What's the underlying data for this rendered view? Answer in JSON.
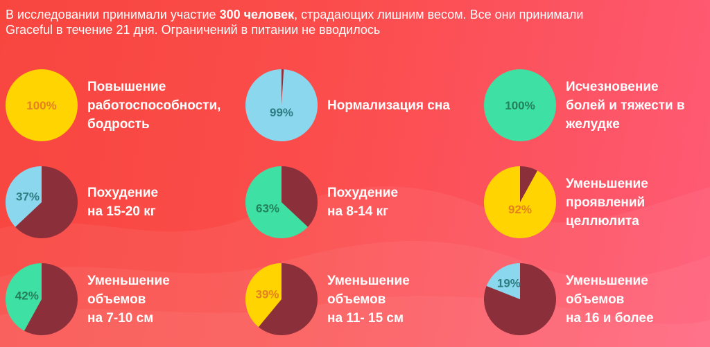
{
  "intro": {
    "part1": "В исследовании принимали участие ",
    "bold": "300 человек",
    "part2": ", страдающих лишним весом. Все они принимали",
    "line2": "Graceful в течение 21 дня. Ограничений в питании не вводилось"
  },
  "colors": {
    "remainder": "#8b2f3a",
    "yellow": "#ffd400",
    "blue": "#8ad7ee",
    "green": "#3fe0a3",
    "pct_orange": "#e3821f",
    "pct_teal": "#2e7d82",
    "pct_darkgreen": "#23805b"
  },
  "chart_data": {
    "type": "pie",
    "charts": [
      {
        "value": 100,
        "pct_label": "100%",
        "label_lines": [
          "Повышение",
          "работоспособности,",
          "бодрость"
        ],
        "color": "#ffd400",
        "text_color": "#e3821f"
      },
      {
        "value": 99,
        "pct_label": "99%",
        "label_lines": [
          "Нормализация сна"
        ],
        "color": "#8ad7ee",
        "text_color": "#2e7d82"
      },
      {
        "value": 100,
        "pct_label": "100%",
        "label_lines": [
          "Исчезновение",
          "болей и тяжести в",
          "желудке"
        ],
        "color": "#3fe0a3",
        "text_color": "#23805b"
      },
      {
        "value": 37,
        "pct_label": "37%",
        "label_lines": [
          "Похудение",
          "на 15-20 кг"
        ],
        "color": "#8ad7ee",
        "text_color": "#2e7d82"
      },
      {
        "value": 63,
        "pct_label": "63%",
        "label_lines": [
          "Похудение",
          "на 8-14 кг"
        ],
        "color": "#3fe0a3",
        "text_color": "#23805b"
      },
      {
        "value": 92,
        "pct_label": "92%",
        "label_lines": [
          "Уменьшение",
          "проявлений",
          "целлюлита"
        ],
        "color": "#ffd400",
        "text_color": "#e3821f"
      },
      {
        "value": 42,
        "pct_label": "42%",
        "label_lines": [
          "Уменьшение",
          "объемов",
          "на 7-10 см"
        ],
        "color": "#3fe0a3",
        "text_color": "#23805b"
      },
      {
        "value": 39,
        "pct_label": "39%",
        "label_lines": [
          "Уменьшение",
          "объемов",
          "на 11- 15 см"
        ],
        "color": "#ffd400",
        "text_color": "#e3821f"
      },
      {
        "value": 19,
        "pct_label": "19%",
        "label_lines": [
          "Уменьшение",
          "объемов",
          "на 16 и более"
        ],
        "color": "#8ad7ee",
        "text_color": "#2e7d82"
      }
    ]
  }
}
